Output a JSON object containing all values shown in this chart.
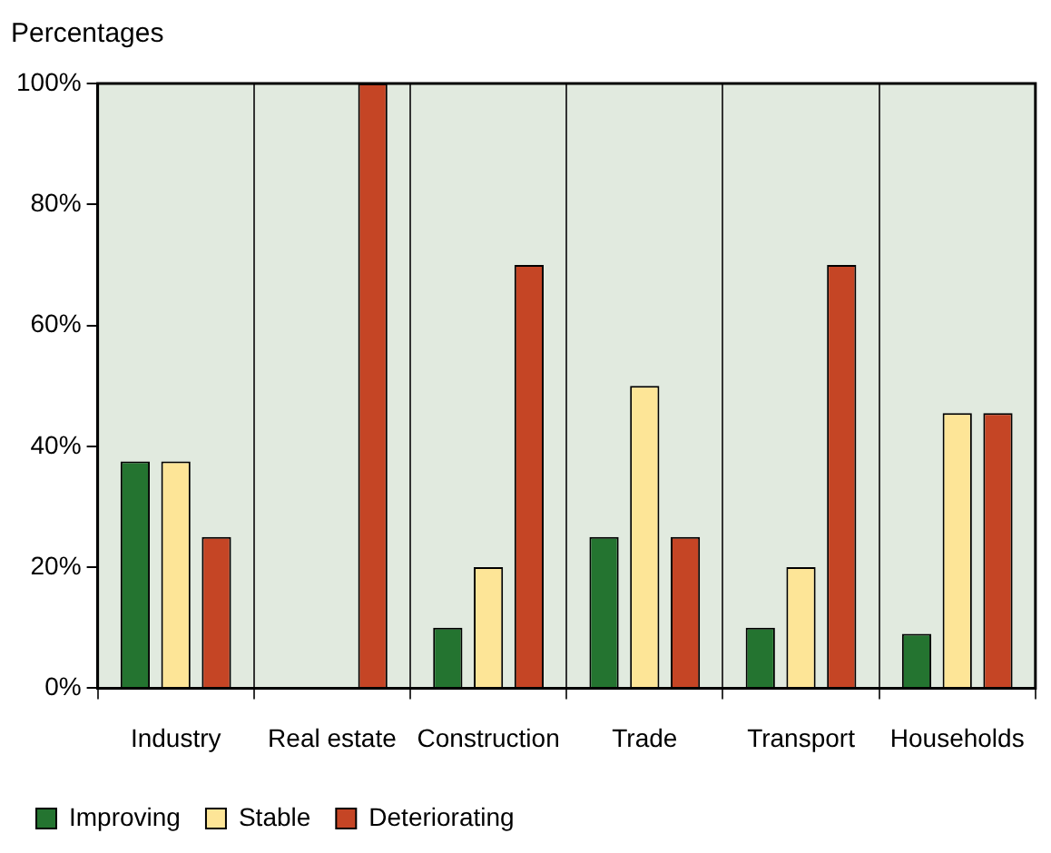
{
  "chart_data": {
    "type": "bar",
    "title": "Percentages",
    "categories": [
      "Industry",
      "Real estate",
      "Construction",
      "Trade",
      "Transport",
      "Households"
    ],
    "series": [
      {
        "name": "Improving",
        "color": "#247430",
        "values": [
          37.5,
          0,
          10,
          25,
          10,
          9
        ]
      },
      {
        "name": "Stable",
        "color": "#fde597",
        "values": [
          37.5,
          0,
          20,
          50,
          20,
          45.5
        ]
      },
      {
        "name": "Deteriorating",
        "color": "#c54525",
        "values": [
          25,
          100,
          70,
          25,
          70,
          45.5
        ]
      }
    ],
    "ylim": [
      0,
      100
    ],
    "yticks": [
      {
        "value": 0,
        "label": "0%"
      },
      {
        "value": 20,
        "label": "20%"
      },
      {
        "value": 40,
        "label": "40%"
      },
      {
        "value": 60,
        "label": "60%"
      },
      {
        "value": 80,
        "label": "80%"
      },
      {
        "value": 100,
        "label": "100%"
      }
    ],
    "grid": "x",
    "legend": "bottom left"
  }
}
